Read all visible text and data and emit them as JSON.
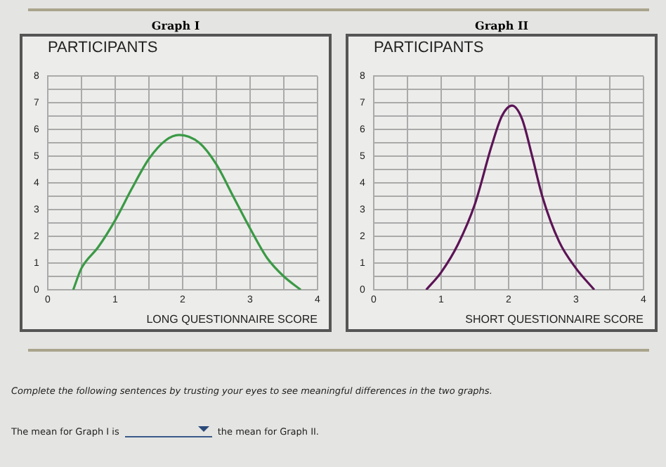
{
  "chart_data": [
    {
      "type": "line",
      "title": "Graph I",
      "ylabel": "PARTICIPANTS",
      "xlabel": "LONG QUESTIONNAIRE SCORE",
      "grid": true,
      "marker": "none",
      "line_style": "solid",
      "series": [
        {
          "color": "#3a9a45",
          "x": [
            0.38,
            0.5,
            0.75,
            1,
            1.25,
            1.5,
            1.75,
            1.95,
            2.25,
            2.5,
            2.75,
            3,
            3.25,
            3.5,
            3.75
          ],
          "values": [
            0,
            0.8,
            1.6,
            2.6,
            3.8,
            4.9,
            5.6,
            5.8,
            5.5,
            4.7,
            3.5,
            2.3,
            1.2,
            0.5,
            0
          ]
        }
      ],
      "xlim": [
        0,
        4
      ],
      "ylim": [
        0,
        8
      ],
      "xticks": [
        0,
        {
          "value": 0.5,
          "label": null
        },
        1,
        {
          "value": 1.5,
          "label": null
        },
        2,
        {
          "value": 2.5,
          "label": null
        },
        3,
        {
          "value": 3.5,
          "label": null
        },
        4
      ],
      "yticks": [
        0,
        {
          "value": 0.5,
          "label": null
        },
        1,
        {
          "value": 1.5,
          "label": null
        },
        2,
        {
          "value": 2.5,
          "label": null
        },
        3,
        {
          "value": 3.5,
          "label": null
        },
        4,
        {
          "value": 4.5,
          "label": null
        },
        5,
        {
          "value": 5.5,
          "label": null
        },
        6,
        {
          "value": 6.5,
          "label": null
        },
        7,
        {
          "value": 7.5,
          "label": null
        },
        8
      ]
    },
    {
      "type": "line",
      "title": "Graph II",
      "ylabel": "PARTICIPANTS",
      "xlabel": "SHORT QUESTIONNAIRE SCORE",
      "grid": true,
      "marker": "none",
      "line_style": "solid",
      "series": [
        {
          "color": "#5c1456",
          "x": [
            0.78,
            1,
            1.25,
            1.5,
            1.75,
            1.9,
            2.05,
            2.2,
            2.35,
            2.5,
            2.75,
            3,
            3.27
          ],
          "values": [
            0,
            0.65,
            1.7,
            3.2,
            5.4,
            6.5,
            6.9,
            6.4,
            5,
            3.5,
            1.8,
            0.8,
            0
          ]
        }
      ],
      "xlim": [
        0,
        4
      ],
      "ylim": [
        0,
        8
      ],
      "xticks": [
        0,
        {
          "value": 0.5,
          "label": null
        },
        1,
        {
          "value": 1.5,
          "label": null
        },
        2,
        {
          "value": 2.5,
          "label": null
        },
        3,
        {
          "value": 3.5,
          "label": null
        },
        4
      ],
      "yticks": [
        0,
        {
          "value": 0.5,
          "label": null
        },
        1,
        {
          "value": 1.5,
          "label": null
        },
        2,
        {
          "value": 2.5,
          "label": null
        },
        3,
        {
          "value": 3.5,
          "label": null
        },
        4,
        {
          "value": 4.5,
          "label": null
        },
        5,
        {
          "value": 5.5,
          "label": null
        },
        6,
        {
          "value": 6.5,
          "label": null
        },
        7,
        {
          "value": 7.5,
          "label": null
        },
        8
      ]
    },
    {
      "type": "other",
      "annotations": [
        "Complete the following sentences by trusting your eyes to see meaningful differences in the two graphs.",
        "The mean for Graph I is",
        "the mean for Graph II."
      ]
    }
  ]
}
